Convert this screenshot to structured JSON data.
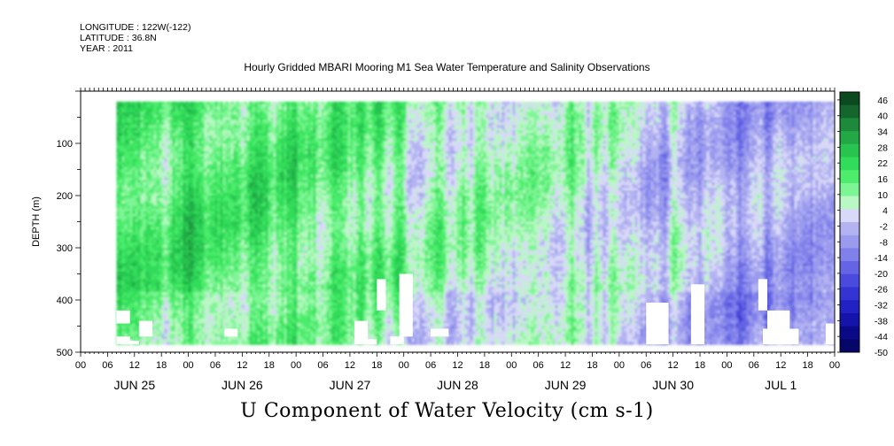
{
  "header": {
    "longitude": "LONGITUDE : 122W(-122)",
    "latitude": "LATITUDE : 36.8N",
    "year": "YEAR : 2011"
  },
  "title": "Hourly Gridded MBARI Mooring M1 Sea Water Temperature and Salinity Observations",
  "variable_title": "U Component of Water Velocity (cm s-1)",
  "chart_data": {
    "type": "heatmap",
    "title": "Hourly Gridded MBARI Mooring M1 Sea Water Temperature and Salinity Observations",
    "variable": "U Component of Water Velocity (cm s-1)",
    "ylabel": "DEPTH (m)",
    "xlabel": "",
    "y_reversed": true,
    "ylim": [
      0,
      500
    ],
    "y_ticks": [
      100,
      200,
      300,
      400,
      500
    ],
    "y_tick_labels": [
      "100",
      "200",
      "300",
      "400",
      "500"
    ],
    "x_hour_tick_labels": [
      "00",
      "06",
      "12",
      "18",
      "00",
      "06",
      "12",
      "18",
      "00",
      "06",
      "12",
      "18",
      "00",
      "06",
      "12",
      "18",
      "00",
      "06",
      "12",
      "18",
      "00",
      "06",
      "12",
      "18",
      "00",
      "06",
      "12",
      "18",
      "00"
    ],
    "x_day_labels": [
      "JUN 25",
      "JUN 26",
      "JUN 27",
      "JUN 28",
      "JUN 29",
      "JUN 30",
      "JUL  1"
    ],
    "x_start": "2011-06-25T00:00",
    "x_end": "2011-07-02T00:00",
    "data_start": "2011-06-25T08:00",
    "data_depth_range": [
      20,
      485
    ],
    "colorbar": {
      "labels": [
        "46",
        "40",
        "34",
        "28",
        "22",
        "16",
        "10",
        "4",
        "-2",
        "-8",
        "-14",
        "-20",
        "-26",
        "-32",
        "-38",
        "-44",
        "-50"
      ],
      "min": -50,
      "max": 49,
      "colors": [
        "#0a4a1e",
        "#14662c",
        "#1c8a3a",
        "#22a845",
        "#28c450",
        "#30dc5a",
        "#4cec6c",
        "#7ef595",
        "#b9f7c4",
        "#d8d8f8",
        "#b3b3f2",
        "#9a9aee",
        "#8080ea",
        "#6464e4",
        "#4a4ade",
        "#3434d2",
        "#2222c4",
        "#1414aa",
        "#0a0a88",
        "#06066a"
      ]
    },
    "profiles_by_day": [
      {
        "day": "JUN 25",
        "u_mean": 18
      },
      {
        "day": "JUN 26",
        "u_mean": 17
      },
      {
        "day": "JUN 27",
        "u_mean": 13
      },
      {
        "day": "JUN 28",
        "u_mean": 8
      },
      {
        "day": "JUN 29",
        "u_mean": 6
      },
      {
        "day": "JUN 30",
        "u_mean": 1
      },
      {
        "day": "JUL  1",
        "u_mean": -5
      }
    ]
  }
}
